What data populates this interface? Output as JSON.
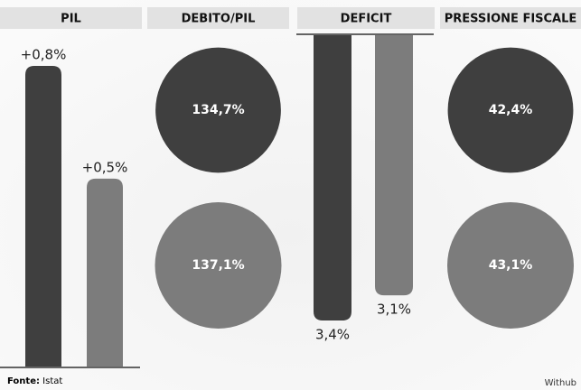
{
  "chart_data": [
    {
      "type": "bar",
      "title": "PIL",
      "direction": "up",
      "values": [
        0.8,
        0.5
      ],
      "value_labels": [
        "+0,8%",
        "+0,5%"
      ],
      "colors": [
        "#3f3f3f",
        "#7c7c7c"
      ]
    },
    {
      "type": "circle",
      "title": "DEBITO/PIL",
      "values": [
        134.7,
        137.1
      ],
      "value_labels": [
        "134,7%",
        "137,1%"
      ],
      "colors": [
        "#3f3f3f",
        "#7c7c7c"
      ]
    },
    {
      "type": "bar",
      "title": "DEFICIT",
      "direction": "down",
      "values": [
        3.4,
        3.1
      ],
      "value_labels": [
        "3,4%",
        "3,1%"
      ],
      "colors": [
        "#3f3f3f",
        "#7c7c7c"
      ]
    },
    {
      "type": "circle",
      "title": "PRESSIONE FISCALE",
      "values": [
        42.4,
        43.1
      ],
      "value_labels": [
        "42,4%",
        "43,1%"
      ],
      "colors": [
        "#3f3f3f",
        "#7c7c7c"
      ]
    }
  ],
  "footer": {
    "source_label": "Fonte:",
    "source": "Istat",
    "credit": "Withub"
  }
}
